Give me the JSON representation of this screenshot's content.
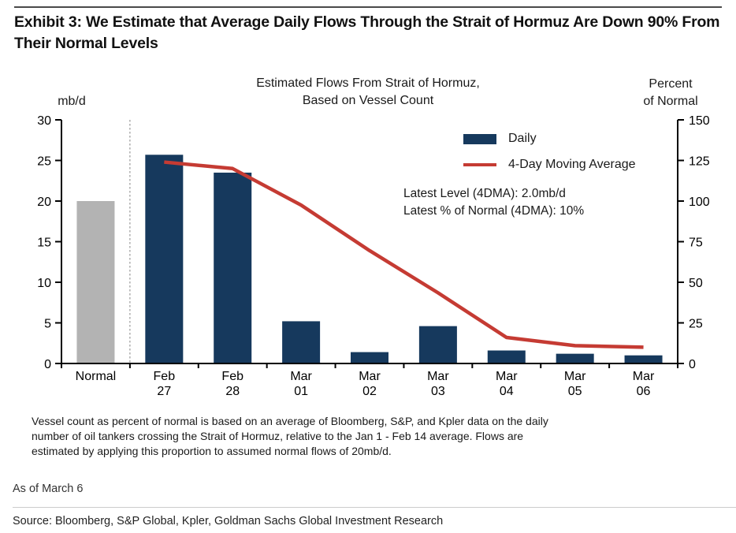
{
  "exhibit": {
    "title": "Exhibit 3: We Estimate that Average Daily Flows Through the Strait of Hormuz Are Down 90% From Their Normal Levels"
  },
  "chart_data": {
    "type": "bar+line",
    "title_line1": "Estimated Flows From Strait of Hormuz,",
    "title_line2": "Based on Vessel Count",
    "grid": false,
    "legend_position": "upper-right",
    "left_axis": {
      "unit": "mb/d",
      "min": 0,
      "max": 30,
      "ticks": [
        0,
        5,
        10,
        15,
        20,
        25,
        30
      ]
    },
    "right_axis": {
      "unit_line1": "Percent",
      "unit_line2": "of Normal",
      "min": 0,
      "max": 150,
      "ticks": [
        0,
        25,
        50,
        75,
        100,
        125,
        150
      ]
    },
    "categories": [
      [
        "Normal"
      ],
      [
        "Feb",
        "27"
      ],
      [
        "Feb",
        "28"
      ],
      [
        "Mar",
        "01"
      ],
      [
        "Mar",
        "02"
      ],
      [
        "Mar",
        "03"
      ],
      [
        "Mar",
        "04"
      ],
      [
        "Mar",
        "05"
      ],
      [
        "Mar",
        "06"
      ]
    ],
    "separator_dashed_after_category_index": 0,
    "series": [
      {
        "name": "Daily",
        "type": "bar",
        "values": [
          20,
          25.7,
          23.5,
          5.2,
          1.4,
          4.6,
          1.6,
          1.2,
          1.0
        ],
        "bar_colors": [
          "#B3B3B3",
          "#16395D",
          "#16395D",
          "#16395D",
          "#16395D",
          "#16395D",
          "#16395D",
          "#16395D",
          "#16395D"
        ]
      },
      {
        "name": "4-Day Moving Average",
        "type": "line",
        "values": [
          null,
          24.8,
          24.0,
          19.5,
          13.9,
          8.7,
          3.2,
          2.2,
          2.0
        ],
        "color": "#C53B33"
      }
    ],
    "annotation_line1": "Latest Level (4DMA): 2.0mb/d",
    "annotation_line2": "Latest % of Normal (4DMA): 10%"
  },
  "notes": {
    "footnote_lines": [
      "Vessel count as percent of normal is based on an average of Bloomberg, S&P, and Kpler data on the daily",
      "number of oil tankers crossing the Strait of Hormuz, relative to the Jan 1 - Feb 14 average. Flows are",
      "estimated by applying this proportion to assumed normal flows of 20mb/d."
    ]
  },
  "meta": {
    "as_of": "As of March 6",
    "source": "Source: Bloomberg, S&P Global, Kpler, Goldman Sachs Global Investment Research"
  },
  "colors": {
    "bar_daily": "#16395D",
    "bar_normal": "#B3B3B3",
    "line_4dma": "#C53B33",
    "axis": "#000000"
  }
}
